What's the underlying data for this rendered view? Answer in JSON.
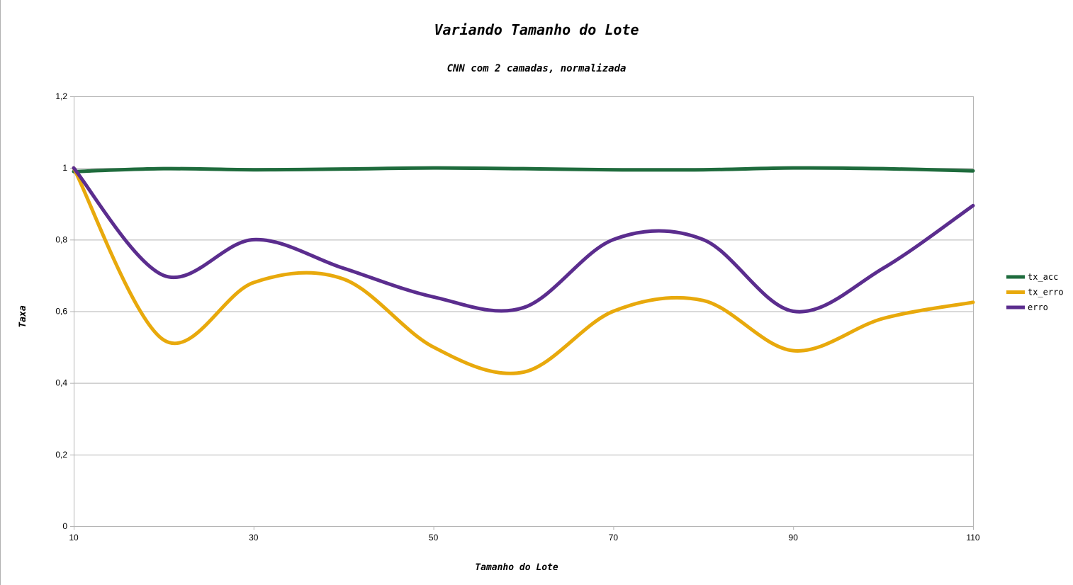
{
  "chart_data": {
    "type": "line",
    "title": "Variando Tamanho do Lote",
    "subtitle": "CNN com 2 camadas, normalizada",
    "xlabel": "Tamanho do Lote",
    "ylabel": "Taxa",
    "x": [
      10,
      20,
      30,
      40,
      50,
      60,
      70,
      80,
      90,
      100,
      110
    ],
    "xlim": [
      10,
      110
    ],
    "ylim": [
      0,
      1.2
    ],
    "xticks": [
      "10",
      "30",
      "50",
      "70",
      "90",
      "110"
    ],
    "xtick_values": [
      10,
      30,
      50,
      70,
      90,
      110
    ],
    "yticks": [
      "0",
      "0,2",
      "0,4",
      "0,6",
      "0,8",
      "1",
      "1,2"
    ],
    "ytick_values": [
      0,
      0.2,
      0.4,
      0.6,
      0.8,
      1.0,
      1.2
    ],
    "grid": "horizontal",
    "legend_position": "right",
    "smooth": true,
    "series": [
      {
        "name": "tx_acc",
        "color": "#1e6b3c",
        "values": [
          0.99,
          0.998,
          0.995,
          0.997,
          1.0,
          0.998,
          0.995,
          0.995,
          1.0,
          0.998,
          0.992
        ]
      },
      {
        "name": "tx_erro",
        "color": "#e8a90c",
        "values": [
          1.0,
          0.52,
          0.68,
          0.69,
          0.5,
          0.43,
          0.6,
          0.63,
          0.49,
          0.58,
          0.625
        ]
      },
      {
        "name": "erro",
        "color": "#5b2d8e",
        "values": [
          1.0,
          0.7,
          0.8,
          0.72,
          0.64,
          0.61,
          0.8,
          0.8,
          0.6,
          0.72,
          0.895
        ]
      }
    ]
  }
}
